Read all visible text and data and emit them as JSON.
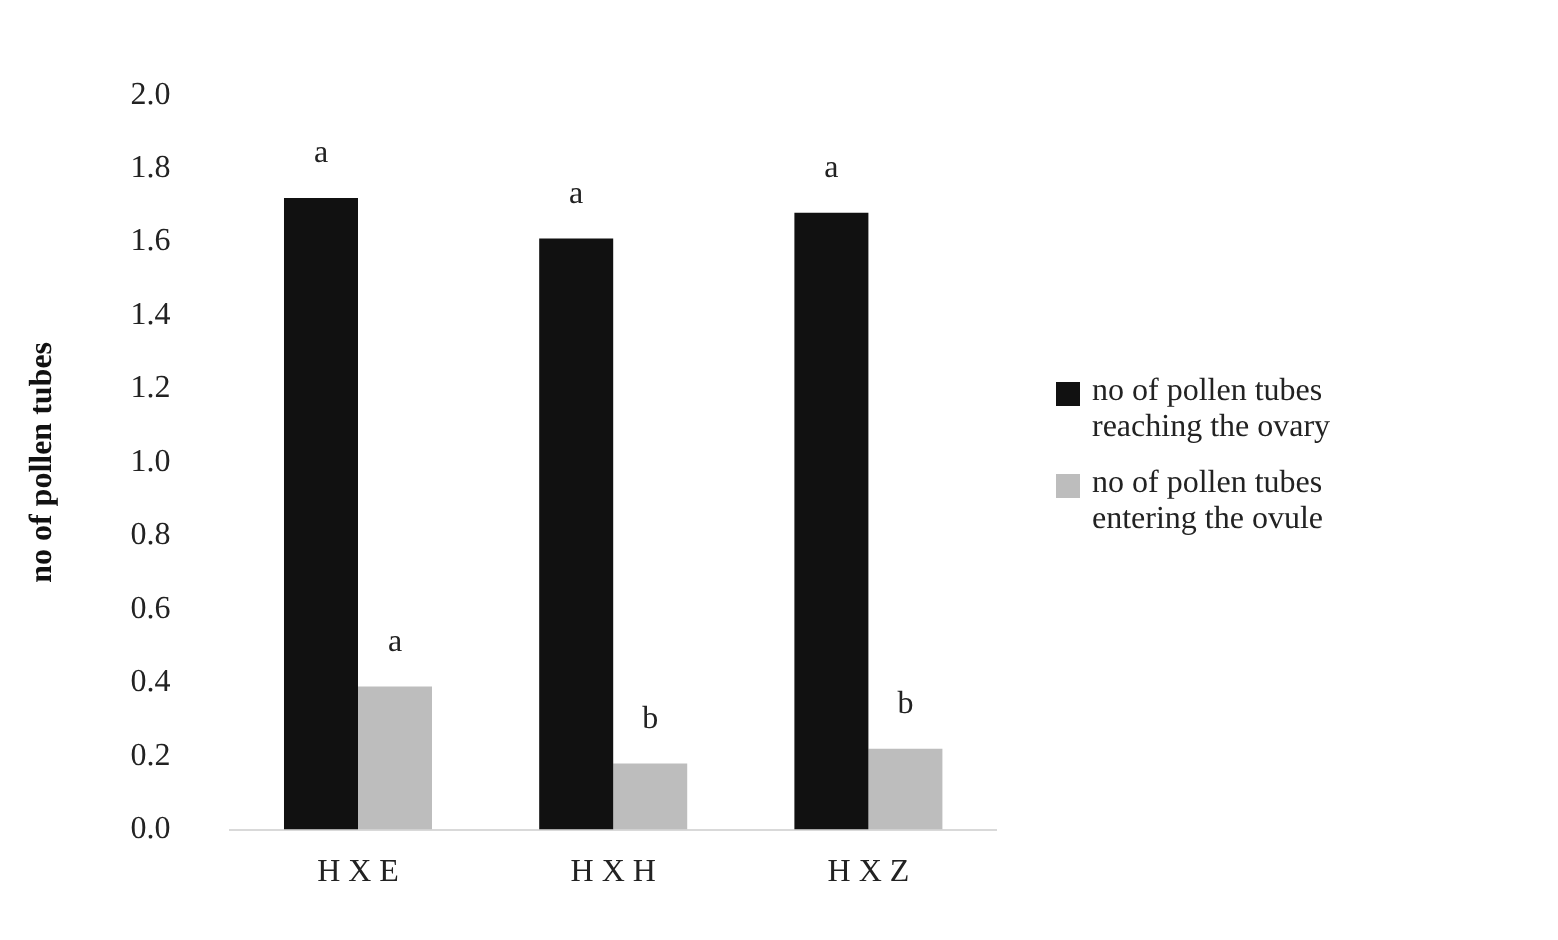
{
  "chart_data": {
    "type": "bar",
    "ylabel": "no of pollen tubes",
    "categories": [
      "H X E",
      "H X H",
      "H X Z"
    ],
    "series": [
      {
        "name": "no of pollen tubes reaching the ovary",
        "color": "#111111",
        "values": [
          1.72,
          1.61,
          1.68
        ]
      },
      {
        "name": "no of pollen tubes entering the ovule",
        "color": "#bdbdbd",
        "values": [
          0.39,
          0.18,
          0.22
        ]
      }
    ],
    "ylim": [
      0,
      2
    ],
    "yticks": [
      {
        "value": 0,
        "label": "0.0"
      },
      {
        "value": 0.2,
        "label": "0.2"
      },
      {
        "value": 0.4,
        "label": "0.4"
      },
      {
        "value": 0.6,
        "label": "0.6"
      },
      {
        "value": 0.8,
        "label": "0.8"
      },
      {
        "value": 1,
        "label": "1.0"
      },
      {
        "value": 1.2,
        "label": "1.2"
      },
      {
        "value": 1.4,
        "label": "1.4"
      },
      {
        "value": 1.6,
        "label": "1.6"
      },
      {
        "value": 1.8,
        "label": "1.8"
      },
      {
        "value": 2,
        "label": "2.0"
      }
    ],
    "grid": false,
    "legend": "right",
    "annotations": [
      {
        "text": "a",
        "x": "H X E",
        "y": 1.72
      },
      {
        "text": "a",
        "x": "H X H",
        "y": 1.61
      },
      {
        "text": "a",
        "x": "H X Z",
        "y": 1.68
      },
      {
        "text": "a",
        "x": "H X E",
        "y": 0.39
      },
      {
        "text": "b",
        "x": "H X H",
        "y": 0.18
      },
      {
        "text": "b",
        "x": "H X Z",
        "y": 0.22
      }
    ]
  }
}
